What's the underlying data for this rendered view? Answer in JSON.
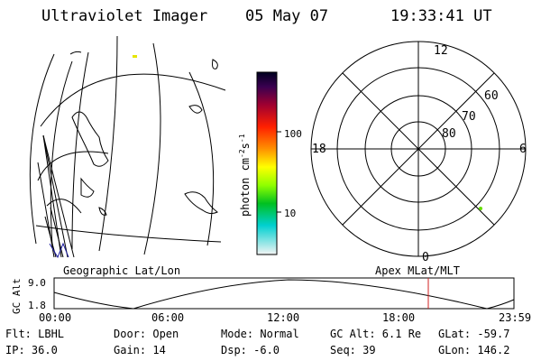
{
  "header": {
    "instrument": "Ultraviolet Imager",
    "date": "05 May 07",
    "time": "19:33:41 UT"
  },
  "colorbar": {
    "unit_label": "photon cm",
    "unit_exp1": "-2",
    "unit_s": "s",
    "unit_exp2": "-1",
    "ticks": [
      "100",
      "10"
    ]
  },
  "polar_plot": {
    "mlt_labels": [
      "12",
      "18",
      "6",
      "0"
    ],
    "lat_labels": [
      "60",
      "70",
      "80"
    ]
  },
  "orbit_panel": {
    "left_title": "Geographic Lat/Lon",
    "right_title": "Apex MLat/MLT",
    "y_label": "GC Alt",
    "y_ticks": [
      "9.0",
      "1.8"
    ],
    "x_ticks": [
      "00:00",
      "06:00",
      "12:00",
      "18:00",
      "23:59"
    ]
  },
  "status": {
    "flt": "Flt: LBHL",
    "ip": "IP: 36.0",
    "door": "Door: Open",
    "gain": "Gain: 14",
    "mode": "Mode: Normal",
    "dsp": "Dsp:    -6.0",
    "gcalt": "GC Alt: 6.1 Re",
    "seq": "Seq: 39",
    "glat": "GLat:  -59.7",
    "glon": "GLon: 146.2"
  },
  "colors": {
    "marker": "#d02020",
    "auroral_dot": "#66dd00",
    "small_mark": "#e6e600"
  }
}
